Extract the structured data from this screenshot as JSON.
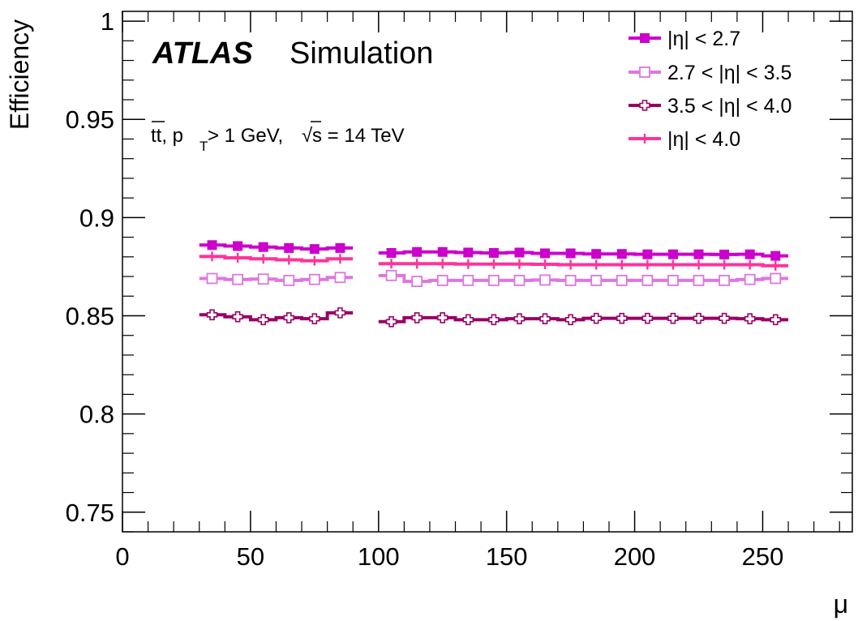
{
  "chart_data": {
    "type": "line",
    "title": "",
    "xlabel": "μ",
    "ylabel": "Efficiency",
    "xlim": [
      0,
      285
    ],
    "ylim": [
      0.74,
      1.005
    ],
    "xticks": [
      0,
      50,
      100,
      150,
      200,
      250
    ],
    "xtick_labels": [
      "0",
      "50",
      "100",
      "150",
      "200",
      "250"
    ],
    "yticks": [
      0.75,
      0.8,
      0.85,
      0.9,
      0.95,
      1.0
    ],
    "ytick_labels": [
      "0.75",
      "0.8",
      "0.85",
      "0.9",
      "0.95",
      "1"
    ],
    "grid": false,
    "legend_position": "top-right",
    "annotations": {
      "experiment": "ATLAS",
      "label": "Simulation",
      "process_prefix": "tt, p",
      "process_sub": "T",
      "process_mid": " > 1 GeV, ",
      "sqrt_sign": "√",
      "energy": "s = 14 TeV"
    },
    "series": [
      {
        "name": "|η| < 2.7",
        "color": "#cc00cc",
        "marker": "filled-square",
        "segments": [
          {
            "x": [
              35,
              45,
              55,
              65,
              75,
              85
            ],
            "y": [
              0.886,
              0.8855,
              0.885,
              0.8845,
              0.884,
              0.8845
            ]
          },
          {
            "x": [
              105,
              115,
              125,
              135,
              145,
              155,
              165,
              175,
              185,
              195,
              205,
              215,
              225,
              235,
              245,
              255
            ],
            "y": [
              0.882,
              0.8825,
              0.8825,
              0.8822,
              0.882,
              0.8822,
              0.8818,
              0.8818,
              0.8815,
              0.8815,
              0.8813,
              0.8813,
              0.8813,
              0.8812,
              0.8813,
              0.8805
            ]
          }
        ]
      },
      {
        "name": "2.7 < |η| < 3.5",
        "color": "#dd77dd",
        "marker": "open-square",
        "segments": [
          {
            "x": [
              35,
              45,
              55,
              65,
              75,
              85
            ],
            "y": [
              0.869,
              0.8685,
              0.8687,
              0.868,
              0.8685,
              0.8695
            ]
          },
          {
            "x": [
              105,
              115,
              125,
              135,
              145,
              155,
              165,
              175,
              185,
              195,
              205,
              215,
              225,
              235,
              245,
              255
            ],
            "y": [
              0.8705,
              0.8675,
              0.868,
              0.868,
              0.868,
              0.868,
              0.8682,
              0.868,
              0.868,
              0.868,
              0.868,
              0.868,
              0.868,
              0.868,
              0.8685,
              0.869
            ]
          }
        ]
      },
      {
        "name": "3.5 < |η| < 4.0",
        "color": "#990066",
        "marker": "open-cross",
        "segments": [
          {
            "x": [
              35,
              45,
              55,
              65,
              75,
              85
            ],
            "y": [
              0.8505,
              0.8495,
              0.848,
              0.849,
              0.8485,
              0.8515
            ]
          },
          {
            "x": [
              105,
              115,
              125,
              135,
              145,
              155,
              165,
              175,
              185,
              195,
              205,
              215,
              225,
              235,
              245,
              255
            ],
            "y": [
              0.847,
              0.849,
              0.849,
              0.848,
              0.848,
              0.8485,
              0.8485,
              0.848,
              0.8487,
              0.8487,
              0.8487,
              0.8487,
              0.8487,
              0.8487,
              0.8485,
              0.848
            ]
          }
        ]
      },
      {
        "name": "|η| < 4.0",
        "color": "#ff3399",
        "marker": "plus",
        "segments": [
          {
            "x": [
              35,
              45,
              55,
              65,
              75,
              85
            ],
            "y": [
              0.8802,
              0.8795,
              0.879,
              0.8785,
              0.878,
              0.879
            ]
          },
          {
            "x": [
              105,
              115,
              125,
              135,
              145,
              155,
              165,
              175,
              185,
              195,
              205,
              215,
              225,
              235,
              245,
              255
            ],
            "y": [
              0.8765,
              0.8765,
              0.8765,
              0.8763,
              0.8763,
              0.8763,
              0.8762,
              0.876,
              0.876,
              0.876,
              0.876,
              0.876,
              0.876,
              0.876,
              0.876,
              0.8755
            ]
          }
        ]
      }
    ]
  }
}
